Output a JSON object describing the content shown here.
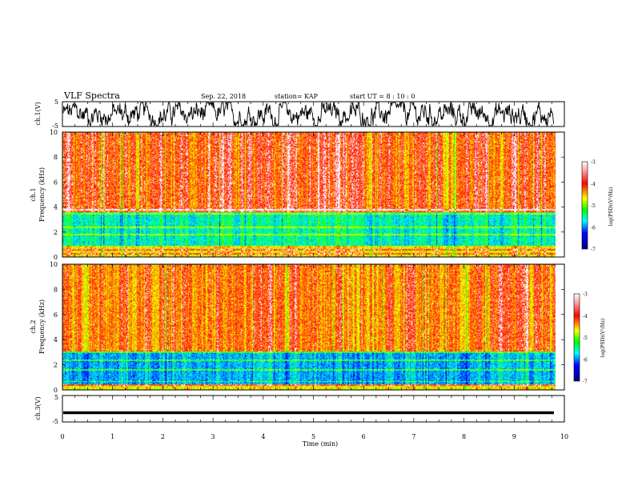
{
  "header": {
    "title": "VLF Spectra",
    "date": "Sep. 22, 2018",
    "station": "station= KAP",
    "start_ut": "start  UT =   8 : 10 : 0"
  },
  "colors": {
    "scale": [
      "#ffffff",
      "#ff0000",
      "#ffff00",
      "#00ff00",
      "#00ffff",
      "#0000ff",
      "#000088"
    ],
    "trace": "#000000"
  },
  "chart_data": [
    {
      "type": "line",
      "name": "ch1-waveform",
      "ylabel": "ch.1(V)",
      "ylim": [
        -5,
        5
      ],
      "yticks": [
        "5",
        "-5"
      ],
      "xlim": [
        0,
        10
      ],
      "grid": false
    },
    {
      "type": "heatmap",
      "name": "ch1-spectrogram",
      "ylabel": "ch.1\nFrequency  (kHz)",
      "ylim": [
        0,
        10
      ],
      "yticks": [
        "0",
        "2",
        "4",
        "6",
        "8",
        "10"
      ],
      "xlim": [
        0,
        10
      ],
      "dominant_levels": {
        "above_4kHz": -3.5,
        "from_1_to_3.5kHz": -5.5,
        "below_1kHz": -4.0
      },
      "colorbar": {
        "label": "log(PSD)(V²/Hz)",
        "range": [
          -7,
          -3
        ],
        "ticks": [
          "-3",
          "-4",
          "-5",
          "-6",
          "-7"
        ]
      }
    },
    {
      "type": "heatmap",
      "name": "ch2-spectrogram",
      "ylabel": "ch.2\nFrequency  (kHz)",
      "ylim": [
        0,
        10
      ],
      "yticks": [
        "0",
        "2",
        "4",
        "6",
        "8",
        "10"
      ],
      "xlim": [
        0,
        10
      ],
      "dominant_levels": {
        "above_3kHz": -3.6,
        "from_0.5_to_3kHz": -5.8,
        "below_0.5kHz": -4.2
      },
      "colorbar": {
        "label": "log(PSD)(V²/Hz)",
        "range": [
          -7,
          -3
        ],
        "ticks": [
          "-3",
          "-4",
          "-5",
          "-6",
          "-7"
        ]
      }
    },
    {
      "type": "line",
      "name": "ch3-waveform",
      "ylabel": "ch.3(V)",
      "ylim": [
        -5,
        5
      ],
      "yticks": [
        "5",
        "-5"
      ],
      "xlim": [
        0,
        10
      ],
      "values_constant": -1.5
    }
  ],
  "xaxis": {
    "label": "Time  (min)",
    "ticks": [
      "0",
      "1",
      "2",
      "3",
      "4",
      "5",
      "6",
      "7",
      "8",
      "9",
      "10"
    ]
  }
}
